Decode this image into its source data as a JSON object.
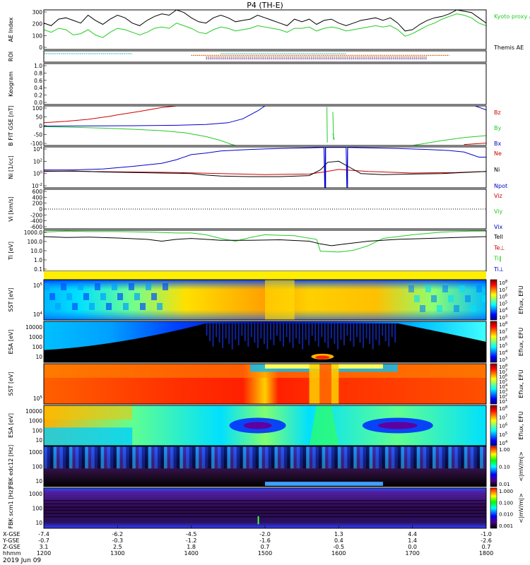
{
  "title": "P4 (TH-E)",
  "date": "2019 Jun 09",
  "chart_data": [
    {
      "id": "ae",
      "type": "line",
      "ylabel": "AE Index",
      "ylim": [
        0,
        300
      ],
      "yticks": [
        "0",
        "100",
        "200",
        "300"
      ],
      "legend": [
        "Kyoto proxy AE",
        "Themis AE"
      ],
      "series": [
        {
          "name": "Themis AE",
          "color": "#000000",
          "x": [
            1200,
            1210,
            1220,
            1230,
            1240,
            1250,
            1260,
            1270,
            1280,
            1290,
            1300,
            1310,
            1320,
            1330,
            1340,
            1350,
            1360,
            1370,
            1380,
            1390,
            1400,
            1410,
            1420,
            1430,
            1440,
            1450,
            1460,
            1470,
            1480,
            1490,
            1500,
            1510,
            1520,
            1530,
            1540,
            1550,
            1560,
            1570,
            1580,
            1590,
            1600,
            1610,
            1620,
            1630,
            1640,
            1650,
            1660,
            1670,
            1680,
            1690,
            1700,
            1710,
            1720,
            1730,
            1740,
            1750,
            1760,
            1770,
            1780,
            1790,
            1800
          ],
          "y": [
            200,
            180,
            230,
            240,
            220,
            200,
            260,
            220,
            190,
            230,
            260,
            240,
            200,
            180,
            220,
            250,
            270,
            260,
            300,
            280,
            240,
            210,
            200,
            240,
            260,
            240,
            210,
            220,
            230,
            260,
            240,
            220,
            200,
            180,
            230,
            210,
            230,
            190,
            220,
            230,
            200,
            180,
            200,
            220,
            230,
            240,
            220,
            240,
            200,
            140,
            150,
            190,
            220,
            240,
            250,
            270,
            300,
            290,
            280,
            240,
            200
          ]
        },
        {
          "name": "Kyoto proxy AE",
          "color": "#22cc22",
          "x": [
            1200,
            1210,
            1220,
            1230,
            1240,
            1250,
            1260,
            1270,
            1280,
            1290,
            1300,
            1310,
            1320,
            1330,
            1340,
            1350,
            1360,
            1370,
            1380,
            1390,
            1400,
            1410,
            1420,
            1430,
            1440,
            1450,
            1460,
            1470,
            1480,
            1490,
            1500,
            1510,
            1520,
            1530,
            1540,
            1550,
            1560,
            1570,
            1580,
            1590,
            1600,
            1610,
            1620,
            1630,
            1640,
            1650,
            1660,
            1670,
            1680,
            1690,
            1700,
            1710,
            1720,
            1730,
            1740,
            1750,
            1760,
            1770,
            1780,
            1790,
            1800
          ],
          "y": [
            150,
            130,
            160,
            150,
            110,
            120,
            150,
            110,
            90,
            130,
            160,
            150,
            130,
            110,
            130,
            160,
            170,
            160,
            200,
            180,
            160,
            130,
            120,
            150,
            170,
            160,
            140,
            150,
            160,
            180,
            170,
            160,
            150,
            130,
            160,
            160,
            170,
            140,
            160,
            170,
            160,
            140,
            150,
            160,
            170,
            180,
            170,
            180,
            150,
            100,
            120,
            150,
            180,
            200,
            230,
            250,
            270,
            260,
            240,
            200,
            180
          ]
        }
      ]
    },
    {
      "id": "roi",
      "type": "bar",
      "ylabel": "ROI",
      "segments": [
        {
          "x": [
            1200,
            1320
          ],
          "color": "#22bbbb",
          "row": 0
        },
        {
          "x": [
            1440,
            1610
          ],
          "color": "#22bbbb",
          "row": 0
        },
        {
          "x": [
            1400,
            1750
          ],
          "color": "#cc5500",
          "row": 1
        },
        {
          "x": [
            1420,
            1720
          ],
          "color": "#882200",
          "row": 2
        },
        {
          "x": [
            1420,
            1720
          ],
          "color": "#440088",
          "row": 3
        }
      ]
    },
    {
      "id": "keogram",
      "type": "line",
      "ylabel": "Keogram",
      "ylim": [
        0,
        1
      ],
      "yticks": [
        "0.0",
        "0.2",
        "0.4",
        "0.6",
        "0.8",
        "1.0"
      ],
      "series": []
    },
    {
      "id": "bfield",
      "type": "line",
      "ylabel": "B FIT GSE [nT]",
      "ylim": [
        -100,
        100
      ],
      "yticks": [
        "-100",
        "-50",
        "0",
        "50",
        "100"
      ],
      "legend": [
        "Bz",
        "By",
        "Bx"
      ],
      "series": [
        {
          "name": "Bz",
          "color": "#cc0000",
          "x": [
            1200,
            1230,
            1260,
            1290,
            1300,
            1330,
            1360,
            1380,
            1382
          ],
          "y": [
            15,
            22,
            32,
            48,
            55,
            72,
            92,
            100,
            100
          ]
        },
        {
          "name": "By",
          "color": "#22cc22",
          "x": [
            1200,
            1240,
            1280,
            1320,
            1360,
            1390,
            1420,
            1440,
            1455,
            1460
          ],
          "y": [
            -5,
            -8,
            -12,
            -18,
            -25,
            -35,
            -55,
            -75,
            -95,
            -100
          ]
        },
        {
          "name": "Bx",
          "color": "#0000cc",
          "x": [
            1200,
            1260,
            1320,
            1380,
            1420,
            1450,
            1470,
            1490,
            1500
          ],
          "y": [
            -2,
            -1,
            0,
            2,
            6,
            15,
            35,
            75,
            100
          ]
        },
        {
          "name": "By",
          "color": "#22cc22",
          "x": [
            1584,
            1584.5
          ],
          "y": [
            95,
            -85
          ]
        },
        {
          "name": "By",
          "color": "#22cc22",
          "x": [
            1592,
            1593
          ],
          "y": [
            70,
            -70
          ]
        },
        {
          "name": "By",
          "color": "#22cc22",
          "x": [
            1592,
            1594
          ],
          "y": [
            -40,
            -70
          ]
        },
        {
          "name": "Bx",
          "color": "#0000cc",
          "x": [
            1785,
            1800
          ],
          "y": [
            100,
            80
          ]
        },
        {
          "name": "By",
          "color": "#22cc22",
          "x": [
            1700,
            1740,
            1770,
            1800
          ],
          "y": [
            -100,
            -75,
            -60,
            -50
          ]
        },
        {
          "name": "Bz",
          "color": "#cc0000",
          "x": [
            1770,
            1800
          ],
          "y": [
            -95,
            -88
          ]
        }
      ]
    },
    {
      "id": "density",
      "type": "line",
      "ylabel": "Ni [1/cc]",
      "ylim": [
        -3,
        5
      ],
      "scale": "log",
      "yticks": [
        "10^-2",
        "10^0",
        "10^2",
        "10^4"
      ],
      "legend": [
        "Ne",
        "Ni",
        "Npot"
      ],
      "series": [
        {
          "name": "Npot",
          "color": "#0000cc",
          "x": [
            1200,
            1240,
            1280,
            1320,
            1360,
            1380,
            1400,
            1420,
            1440,
            1480,
            1520,
            1560,
            1580,
            1581,
            1582,
            1600,
            1610,
            1611,
            1612,
            1640,
            1680,
            1720,
            1750,
            1770,
            1790,
            1800
          ],
          "y": [
            0.5,
            0.5,
            0.7,
            1.2,
            1.8,
            2.5,
            3.5,
            3.8,
            4.2,
            4.5,
            4.7,
            4.8,
            4.9,
            -3,
            4.9,
            4.9,
            4.9,
            -3,
            4.9,
            4.8,
            4.7,
            4.5,
            4.3,
            4.0,
            3.0,
            3.0
          ]
        },
        {
          "name": "Ne",
          "color": "#cc0000",
          "x": [
            1200,
            1260,
            1320,
            1380,
            1440,
            1500,
            1560,
            1580,
            1600,
            1640,
            1700,
            1760,
            1800
          ],
          "y": [
            0.3,
            0.2,
            0.1,
            0.0,
            -0.2,
            -0.4,
            -0.3,
            0.1,
            0.6,
            0.2,
            -0.1,
            0.0,
            0.2
          ]
        },
        {
          "name": "Ni",
          "color": "#000000",
          "x": [
            1200,
            1240,
            1280,
            1320,
            1360,
            1400,
            1420,
            1440,
            1480,
            1520,
            1560,
            1575,
            1585,
            1600,
            1615,
            1630,
            1660,
            1700,
            1740,
            1770,
            1800
          ],
          "y": [
            0.2,
            0.3,
            0.1,
            0.0,
            -0.1,
            -0.2,
            -0.5,
            -0.7,
            -0.8,
            -0.8,
            -0.6,
            0.5,
            2.0,
            2.2,
            1.0,
            -0.2,
            -0.4,
            -0.3,
            -0.2,
            0.0,
            0.2
          ]
        }
      ]
    },
    {
      "id": "velocity",
      "type": "line",
      "ylabel": "Vi [km/s]",
      "ylim": [
        -600,
        600
      ],
      "yticks": [
        "-600",
        "-400",
        "-200",
        "0",
        "200",
        "400",
        "600"
      ],
      "legend": [
        "Viz",
        "Viy",
        "Vix"
      ],
      "series": [
        {
          "name": "Vix",
          "color": "#000000",
          "x": [
            1200,
            1800
          ],
          "y": [
            0,
            0
          ]
        }
      ]
    },
    {
      "id": "temperature",
      "type": "line",
      "ylabel": "Ti [eV]",
      "ylim": [
        -1,
        3.5
      ],
      "scale": "log",
      "yticks": [
        "0.1",
        "1.0",
        "10.0",
        "100.0",
        "1000.0"
      ],
      "legend": [
        "Tell",
        "Te⊥",
        "Ti‖",
        "Ti⊥"
      ],
      "series": [
        {
          "name": "Ti‖",
          "color": "#22cc22",
          "x": [
            1200,
            1230,
            1260,
            1300,
            1340,
            1380,
            1400,
            1420,
            1440,
            1460,
            1480,
            1500,
            1540,
            1570,
            1575,
            1600,
            1620,
            1640,
            1660,
            1700,
            1740,
            1780,
            1800
          ],
          "y": [
            3.3,
            3.4,
            3.35,
            3.35,
            3.3,
            3.2,
            3.2,
            3.0,
            2.6,
            2.3,
            2.7,
            3.0,
            2.9,
            2.5,
            1.2,
            1.1,
            1.3,
            1.8,
            2.6,
            3.0,
            3.3,
            3.4,
            3.4
          ]
        },
        {
          "name": "Tell",
          "color": "#000000",
          "x": [
            1200,
            1230,
            1260,
            1300,
            1340,
            1360,
            1380,
            1400,
            1420,
            1440,
            1480,
            1520,
            1560,
            1575,
            1590,
            1610,
            1640,
            1680,
            1720,
            1760,
            1800
          ],
          "y": [
            2.8,
            2.7,
            2.75,
            2.65,
            2.5,
            2.3,
            2.5,
            2.6,
            2.5,
            2.4,
            2.4,
            2.45,
            2.3,
            2.0,
            1.8,
            2.0,
            2.3,
            2.5,
            2.6,
            2.7,
            2.8
          ]
        }
      ]
    },
    {
      "id": "sst_ion",
      "type": "heatmap",
      "ylabel": "SST [eV]",
      "yticks": [
        "10^4",
        "10^5"
      ],
      "colorbar_label": "Eflux, EFU",
      "colorbar_ticks": [
        "10^3",
        "10^4",
        "10^5",
        "10^6",
        "10^7",
        "10^8"
      ]
    },
    {
      "id": "esa_ion",
      "type": "heatmap",
      "ylabel": "ESA [eV]",
      "yticks": [
        "10",
        "100",
        "1000",
        "10000"
      ],
      "colorbar_label": "Eflux, EFU",
      "colorbar_ticks": [
        "10^3",
        "10^4",
        "10^5",
        "10^6",
        "10^7",
        "10^8"
      ]
    },
    {
      "id": "sst_elec",
      "type": "heatmap",
      "ylabel": "SST [eV]",
      "yticks": [
        "10^5"
      ],
      "colorbar_label": "Eflux, EFU",
      "colorbar_ticks": [
        "10^1",
        "10^2",
        "10^3",
        "10^4",
        "10^5",
        "10^6",
        "10^7",
        "10^8"
      ]
    },
    {
      "id": "esa_elec",
      "type": "heatmap",
      "ylabel": "ESA [eV]",
      "yticks": [
        "10",
        "100",
        "1000",
        "10000"
      ],
      "colorbar_label": "Eflux, EFU",
      "colorbar_ticks": [
        "10^4",
        "10^5",
        "10^6",
        "10^7",
        "10^8"
      ]
    },
    {
      "id": "fbk_e",
      "type": "heatmap",
      "ylabel": "FBK edc12 [Hz]",
      "yticks": [
        "10",
        "100",
        "1000"
      ],
      "colorbar_label": "<|mV/m|>",
      "colorbar_ticks": [
        "0.01",
        "0.10",
        "1.00"
      ]
    },
    {
      "id": "fbk_b",
      "type": "heatmap",
      "ylabel": "FBK scm1 [Hz]",
      "yticks": [
        "10",
        "100",
        "1000"
      ],
      "colorbar_label": "<|mV/m|>",
      "colorbar_ticks": [
        "0.001",
        "0.010",
        "0.100",
        "1.000"
      ]
    }
  ],
  "xaxis": {
    "range": [
      1200,
      1800
    ],
    "rows": [
      {
        "label": "X-GSE",
        "values": [
          "-7.4",
          "-6.2",
          "-4.5",
          "-2.0",
          "1.3",
          "4.4",
          "-1.0"
        ]
      },
      {
        "label": "Y-GSE",
        "values": [
          "-0.7",
          "-0.3",
          "-1.2",
          "-1.6",
          "0.4",
          "1.4",
          "-2.6"
        ]
      },
      {
        "label": "Z-GSE",
        "values": [
          "3.1",
          "2.5",
          "1.8",
          "0.7",
          "-0.5",
          "0.0",
          "0.7"
        ]
      },
      {
        "label": "hhmm",
        "values": [
          "1200",
          "1300",
          "1400",
          "1500",
          "1600",
          "1700",
          "1800"
        ]
      }
    ]
  }
}
